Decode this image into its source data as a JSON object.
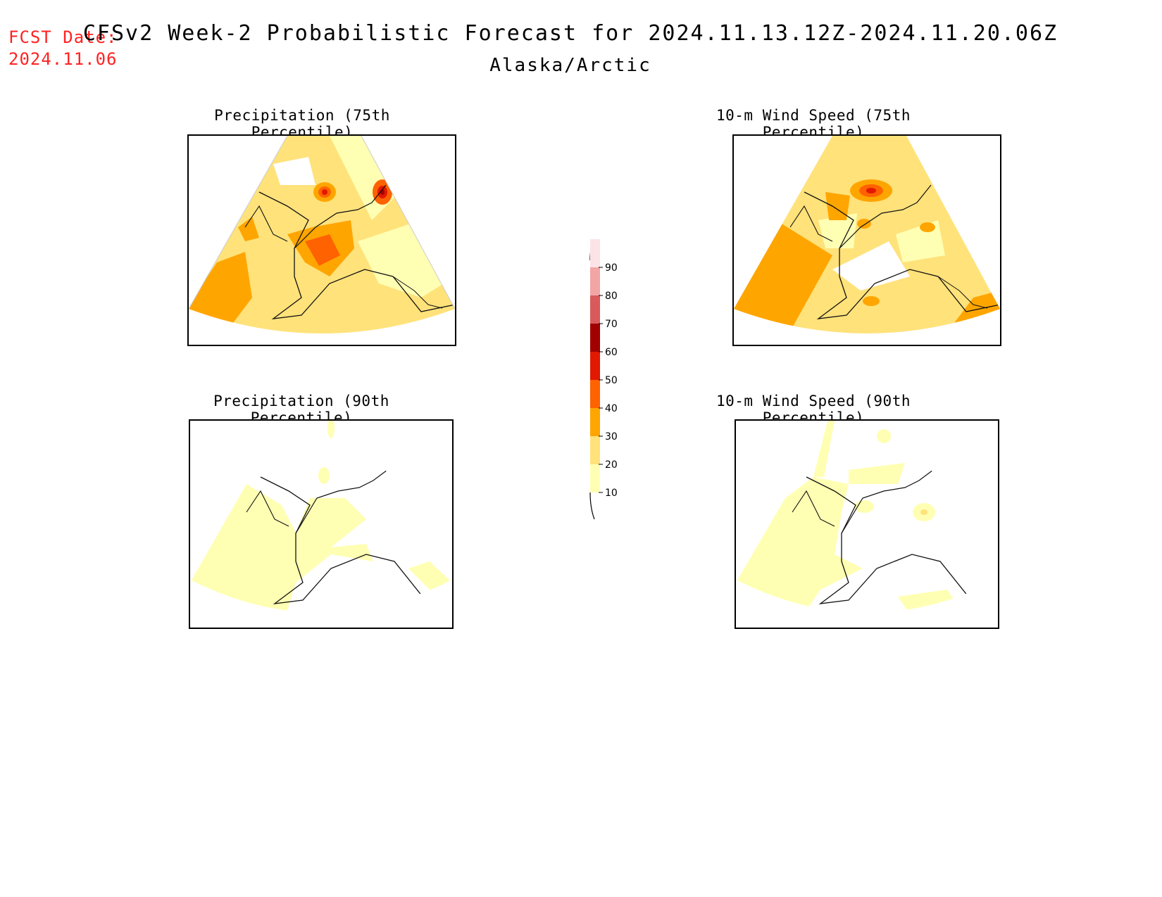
{
  "header": {
    "fcst_label": "FCST Date:",
    "fcst_date": "2024.11.06",
    "title": "CFSv2 Week-2 Probabilistic Forecast for 2024.11.13.12Z-2024.11.20.06Z",
    "region": "Alaska/Arctic"
  },
  "panels": [
    {
      "title": "Precipitation (75th Percentile)"
    },
    {
      "title": "10-m Wind Speed (75th Percentile)"
    },
    {
      "title": "Precipitation (90th Percentile)"
    },
    {
      "title": "10-m Wind Speed (90th Percentile)"
    }
  ],
  "legend": {
    "labels": [
      "10",
      "20",
      "30",
      "40",
      "50",
      "60",
      "70",
      "80",
      "90"
    ],
    "colors": [
      "#ffffb3",
      "#ffe27a",
      "#ffa500",
      "#ff6200",
      "#e21800",
      "#a00000",
      "#d85a5a",
      "#f2a5a5",
      "#fde3e6"
    ]
  }
}
